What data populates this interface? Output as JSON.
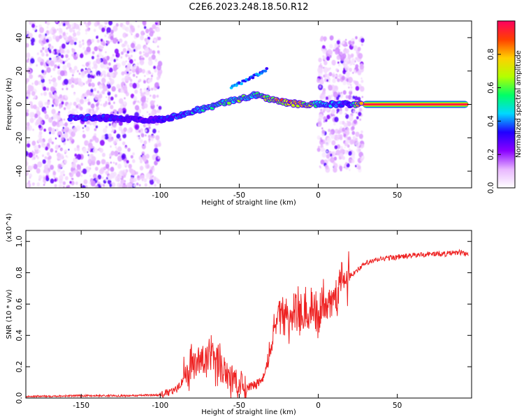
{
  "title": "C2E6.2023.248.18.50.R12",
  "chart_data": [
    {
      "type": "heatmap",
      "title": "",
      "xlabel": "Height of straight line (km)",
      "ylabel": "Frequency (Hz)",
      "xlim": [
        -185,
        97
      ],
      "ylim": [
        -50,
        50
      ],
      "xticks": [
        -150,
        -100,
        -50,
        0,
        50
      ],
      "yticks": [
        -40,
        -20,
        0,
        20,
        40
      ],
      "colorbar": {
        "label": "Normalized spectral amplitude",
        "range": [
          0.0,
          1.0
        ],
        "ticks": [
          0.0,
          0.2,
          0.4,
          0.6,
          0.8
        ],
        "tick_labels": [
          "0.0",
          "0.2",
          "0.4",
          "0.6",
          "0.8"
        ],
        "colors": [
          "#ffffff",
          "#e8b7ff",
          "#8a00ff",
          "#2000ff",
          "#00d8ff",
          "#00ff66",
          "#b4ff00",
          "#ffd000",
          "#ff4000",
          "#ff0060"
        ]
      },
      "regions": [
        {
          "name": "noise-left",
          "x_range": [
            -185,
            -100
          ],
          "f_range": [
            -50,
            50
          ],
          "amplitude": 0.12
        },
        {
          "name": "noise-mid",
          "x_range": [
            0,
            28
          ],
          "f_range": [
            -40,
            40
          ],
          "amplitude": 0.12
        },
        {
          "name": "carrier",
          "x_range": [
            28,
            95
          ],
          "f_center": 0,
          "amplitude": 0.98
        }
      ],
      "ridge": [
        {
          "x": -157,
          "f": -8,
          "a": 0.35
        },
        {
          "x": -145,
          "f": -8,
          "a": 0.4
        },
        {
          "x": -140,
          "f": -8,
          "a": 0.35
        },
        {
          "x": -110,
          "f": -9,
          "a": 0.3
        },
        {
          "x": -100,
          "f": -9,
          "a": 0.35
        },
        {
          "x": -90,
          "f": -7,
          "a": 0.4
        },
        {
          "x": -80,
          "f": -4,
          "a": 0.45
        },
        {
          "x": -70,
          "f": -2,
          "a": 0.5
        },
        {
          "x": -60,
          "f": 1,
          "a": 0.55
        },
        {
          "x": -50,
          "f": 3,
          "a": 0.6
        },
        {
          "x": -40,
          "f": 6,
          "a": 0.5
        },
        {
          "x": -30,
          "f": 3,
          "a": 0.75
        },
        {
          "x": -20,
          "f": 1,
          "a": 0.85
        },
        {
          "x": -10,
          "f": 0,
          "a": 0.8
        },
        {
          "x": 0,
          "f": 0,
          "a": 0.5
        },
        {
          "x": 20,
          "f": 0,
          "a": 0.35
        },
        {
          "x": 28,
          "f": 0,
          "a": 0.95
        }
      ]
    },
    {
      "type": "line",
      "title": "",
      "xlabel": "Height of straight line (km)",
      "ylabel": "SNR (10 * v/v)",
      "yunit": "(x10^4)",
      "xlim": [
        -185,
        97
      ],
      "ylim": [
        0.0,
        1.07
      ],
      "xticks": [
        -150,
        -100,
        -50,
        0,
        50
      ],
      "yticks": [
        0.0,
        0.2,
        0.4,
        0.6,
        0.8,
        1.0
      ],
      "ytick_labels": [
        "0.0",
        "0.2",
        "0.4",
        "0.6",
        "0.8",
        "1.0"
      ],
      "color": "#ee2222",
      "x": [
        -185,
        -150,
        -120,
        -100,
        -90,
        -80,
        -70,
        -60,
        -50,
        -40,
        -35,
        -30,
        -25,
        -20,
        -15,
        -10,
        -5,
        0,
        10,
        20,
        30,
        40,
        50,
        60,
        70,
        80,
        90,
        95
      ],
      "y": [
        0.01,
        0.015,
        0.015,
        0.02,
        0.05,
        0.2,
        0.25,
        0.2,
        0.07,
        0.08,
        0.12,
        0.3,
        0.6,
        0.5,
        0.55,
        0.5,
        0.5,
        0.55,
        0.68,
        0.78,
        0.86,
        0.89,
        0.9,
        0.91,
        0.92,
        0.92,
        0.93,
        0.92
      ]
    }
  ]
}
